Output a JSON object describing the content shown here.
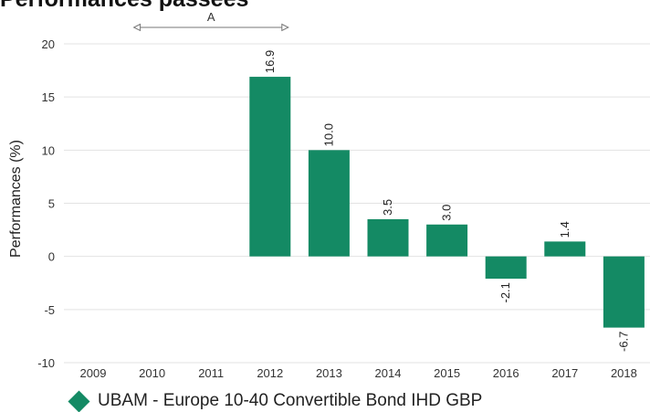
{
  "title": "Performances passées",
  "chart_data": {
    "type": "bar",
    "title": "Performances passées",
    "ylabel": "Performances (%)",
    "xlabel": "",
    "categories": [
      "2009",
      "2010",
      "2011",
      "2012",
      "2013",
      "2014",
      "2015",
      "2016",
      "2017",
      "2018"
    ],
    "series": [
      {
        "name": "UBAM - Europe 10-40 Convertible Bond IHD GBP",
        "values": [
          null,
          null,
          null,
          16.9,
          10.0,
          3.5,
          3.0,
          -2.1,
          1.4,
          -6.7
        ],
        "labels": [
          "",
          "",
          "",
          "16.9",
          "10.0",
          "3.5",
          "3.0",
          "-2.1",
          "1.4",
          "-6.7"
        ]
      }
    ],
    "ylim": [
      -10,
      20
    ],
    "yticks": [
      "-10",
      "-5",
      "0",
      "5",
      "10",
      "15",
      "20"
    ],
    "grid": true,
    "legend_position": "bottom-left",
    "annotation": {
      "label": "A",
      "from": "2010",
      "to": "2012"
    },
    "bar_color": "#148a64"
  }
}
